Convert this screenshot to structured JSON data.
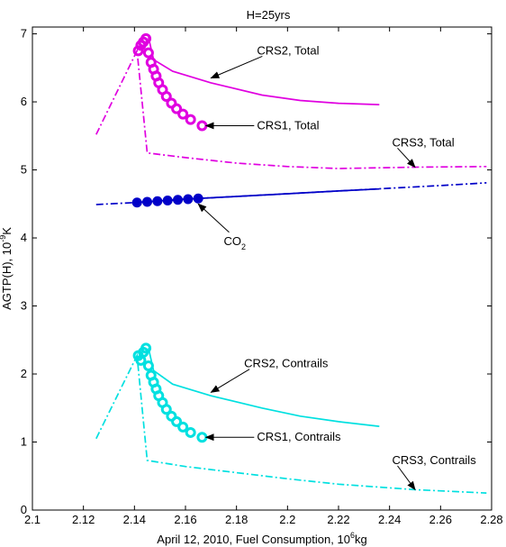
{
  "chart_data": {
    "type": "line",
    "title": "H=25yrs",
    "xlabel": "April 12, 2010, Fuel Consumption, 10",
    "xlabel_sup": "6",
    "xlabel_tail": "kg",
    "ylabel": "AGTP(H), 10",
    "ylabel_sup": "-9",
    "ylabel_tail": "K",
    "xlim": [
      2.1,
      2.28
    ],
    "ylim": [
      0,
      7.1
    ],
    "xticks": [
      2.1,
      2.12,
      2.14,
      2.16,
      2.18,
      2.2,
      2.22,
      2.24,
      2.26,
      2.28
    ],
    "xtick_labels": [
      "2.1",
      "2.12",
      "2.14",
      "2.16",
      "2.18",
      "2.2",
      "2.22",
      "2.24",
      "2.26",
      "2.28"
    ],
    "yticks": [
      0,
      1,
      2,
      3,
      4,
      5,
      6,
      7
    ],
    "ytick_labels": [
      "0",
      "1",
      "2",
      "3",
      "4",
      "5",
      "6",
      "7"
    ],
    "grid": false,
    "series": [
      {
        "name": "CRS2, Total",
        "color": "#e000e0",
        "style": "solid",
        "marker": "none",
        "x": [
          2.1455,
          2.1475,
          2.155,
          2.17,
          2.19,
          2.205,
          2.22,
          2.236
        ],
        "y": [
          6.95,
          6.62,
          6.45,
          6.28,
          6.1,
          6.02,
          5.98,
          5.96
        ]
      },
      {
        "name": "CRS1, Total",
        "color": "#e000e0",
        "style": "none",
        "marker": "circle",
        "x": [
          2.1415,
          2.1425,
          2.1435,
          2.1445,
          2.1455,
          2.1465,
          2.1475,
          2.1485,
          2.1495,
          2.151,
          2.1525,
          2.1545,
          2.1565,
          2.159,
          2.162,
          2.1665
        ],
        "y": [
          6.75,
          6.83,
          6.88,
          6.93,
          6.72,
          6.58,
          6.48,
          6.38,
          6.28,
          6.18,
          6.08,
          5.98,
          5.9,
          5.82,
          5.74,
          5.65
        ]
      },
      {
        "name": "CRS3, Total",
        "color": "#e000e0",
        "style": "dashdot",
        "marker": "none",
        "x": [
          2.125,
          2.141,
          2.145,
          2.16,
          2.18,
          2.2,
          2.22,
          2.25,
          2.278
        ],
        "y": [
          5.52,
          6.75,
          5.25,
          5.18,
          5.1,
          5.05,
          5.02,
          5.04,
          5.05
        ]
      },
      {
        "name": "CO2",
        "color": "#0000c8",
        "style": "dashdot",
        "marker": "none",
        "x": [
          2.125,
          2.14,
          2.16,
          2.18,
          2.2,
          2.22,
          2.24,
          2.26,
          2.278
        ],
        "y": [
          4.49,
          4.52,
          4.57,
          4.61,
          4.65,
          4.69,
          4.73,
          4.77,
          4.81
        ]
      },
      {
        "name": "CO2 (solid)",
        "color": "#0000c8",
        "style": "solid",
        "marker": "none",
        "x": [
          2.14,
          2.16,
          2.18,
          2.2,
          2.22,
          2.236
        ],
        "y": [
          4.52,
          4.57,
          4.61,
          4.65,
          4.69,
          4.72
        ]
      },
      {
        "name": "CO2 (markers)",
        "color": "#0000c8",
        "style": "none",
        "marker": "filled-circle",
        "x": [
          2.141,
          2.145,
          2.149,
          2.153,
          2.157,
          2.161,
          2.165
        ],
        "y": [
          4.52,
          4.53,
          4.54,
          4.55,
          4.56,
          4.57,
          4.58
        ]
      },
      {
        "name": "CRS2, Contrails",
        "color": "#00e0e0",
        "style": "solid",
        "marker": "none",
        "x": [
          2.1455,
          2.1475,
          2.155,
          2.17,
          2.19,
          2.205,
          2.22,
          2.236
        ],
        "y": [
          2.38,
          2.05,
          1.85,
          1.68,
          1.5,
          1.38,
          1.3,
          1.23
        ]
      },
      {
        "name": "CRS1, Contrails",
        "color": "#00e0e0",
        "style": "none",
        "marker": "circle",
        "x": [
          2.1415,
          2.1425,
          2.1435,
          2.1445,
          2.1455,
          2.1465,
          2.1475,
          2.1485,
          2.1495,
          2.151,
          2.1525,
          2.1545,
          2.1565,
          2.159,
          2.162,
          2.1665
        ],
        "y": [
          2.27,
          2.2,
          2.32,
          2.38,
          2.12,
          1.98,
          1.88,
          1.78,
          1.68,
          1.58,
          1.48,
          1.38,
          1.3,
          1.22,
          1.14,
          1.07
        ]
      },
      {
        "name": "CRS3, Contrails",
        "color": "#00e0e0",
        "style": "dashdot",
        "marker": "none",
        "x": [
          2.125,
          2.141,
          2.145,
          2.16,
          2.18,
          2.2,
          2.22,
          2.25,
          2.278
        ],
        "y": [
          1.05,
          2.27,
          0.73,
          0.64,
          0.55,
          0.46,
          0.38,
          0.3,
          0.25
        ]
      }
    ],
    "annotations": [
      {
        "text": "CRS2, Total",
        "sub": "",
        "text_x": 2.188,
        "text_y": 6.75,
        "to_x": 2.17,
        "to_y": 6.35
      },
      {
        "text": "CRS1, Total",
        "sub": "",
        "text_x": 2.188,
        "text_y": 5.65,
        "to_x": 2.168,
        "to_y": 5.65
      },
      {
        "text": "CRS3, Total",
        "sub": "",
        "text_x": 2.241,
        "text_y": 5.4,
        "to_x": 2.25,
        "to_y": 5.04
      },
      {
        "text": "CO",
        "sub": "2",
        "text_x": 2.175,
        "text_y": 3.95,
        "to_x": 2.165,
        "to_y": 4.5
      },
      {
        "text": "CRS2, Contrails",
        "sub": "",
        "text_x": 2.183,
        "text_y": 2.15,
        "to_x": 2.17,
        "to_y": 1.73
      },
      {
        "text": "CRS1, Contrails",
        "sub": "",
        "text_x": 2.188,
        "text_y": 1.07,
        "to_x": 2.168,
        "to_y": 1.07
      },
      {
        "text": "CRS3, Contrails",
        "sub": "",
        "text_x": 2.241,
        "text_y": 0.73,
        "to_x": 2.25,
        "to_y": 0.3
      }
    ]
  }
}
